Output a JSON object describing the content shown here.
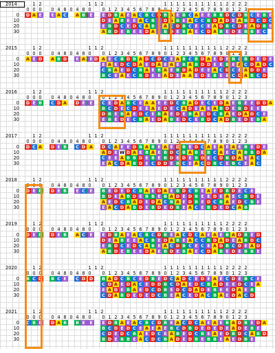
{
  "colors": {
    "A": {
      "bg": "#ffe000",
      "fg": "#8a1c00"
    },
    "B": {
      "bg": "#00b050",
      "fg": "#ffffff"
    },
    "C": {
      "bg": "#1f6fd6",
      "fg": "#ffffff"
    },
    "D": {
      "bg": "#e2231a",
      "fg": "#ffffff"
    },
    "E": {
      "bg": "#9b59d0",
      "fg": "#ffffff"
    },
    "highlight": "#f48c14"
  },
  "header_top": [
    "1",
    "2",
    "",
    "",
    "",
    "",
    "",
    "",
    "1",
    "1",
    "1",
    "2"
  ],
  "header_top_right": [
    "1",
    "1",
    "1",
    "1",
    "1",
    "1",
    "1",
    "1",
    "1",
    "1",
    "2",
    "2",
    "2",
    "2"
  ],
  "header_bottom_left": [
    "0",
    "0",
    "0",
    "",
    "0",
    "4",
    "8",
    "0",
    "4",
    "8",
    "0"
  ],
  "header_bottom_right": [
    "0",
    "1",
    "2",
    "3",
    "4",
    "5",
    "6",
    "7",
    "8",
    "9",
    "0",
    "1",
    "2",
    "3",
    "4",
    "5",
    "6",
    "7",
    "8",
    "9",
    "0",
    "1",
    "2",
    "3"
  ],
  "row_labels": [
    "0",
    "10",
    "20",
    "30"
  ],
  "years": [
    {
      "year": "2014",
      "left": [
        "DAE",
        "EAC",
        "ABD",
        "E"
      ],
      "rows": [
        "EDBAEACBCDBAEBCAEEBBDCDBCEBED",
        "DEABEEACBEDABEACCBDADEABDCDCE",
        "EBDCEDCABEACDBCECEADBCDEADBE",
        "ABDEBEEDAEBDEBAECDABEDEBBEC"
      ]
    },
    {
      "year": "2015",
      "left": [
        "AED",
        "ABD",
        "EACD",
        "E"
      ],
      "rows": [
        "AECBDBADCDCEABCBDAEDEBCBDEDE",
        "EAEDCDAEDAEAEBABDDEEBEACDADC",
        "CBAEDCBAEBAEBDADEEACDCEADDE",
        "BCEAECBDEEADEAAEDEBEECDABCD"
      ]
    },
    {
      "year": "2016",
      "left": [
        "DEB",
        "CDA",
        "DEB",
        "E"
      ],
      "rows": [
        "CEDABCEAAEEDCBADECEDAEBEEDDA",
        "BCDECDEEAEDECADEAEABDEBDEE",
        "DBEBAEDCEBAEDEBAEDCBAEDADCE",
        "EBEDECBAEDABEDCEBDCADBEDEBA"
      ]
    },
    {
      "year": "2017",
      "left": [
        "DCA",
        "DEB",
        "CDA",
        "A"
      ],
      "rows": [
        "DCAEEDBABEAEDBEDCAEAEAEBEDE",
        "ADEWDAEBAEBDCBABEBCAECABBDA",
        "CEEABBDEBEBDEDEBDECDBDAEAC",
        "EACDABDECDDEBCEACDBCEBCEAC"
      ]
    },
    {
      "year": "2018",
      "left": [
        "DEB",
        "DEB",
        "ECB",
        "E"
      ],
      "rows": [
        "BEDEDCBAEDAEBDCBEAEDBDECE",
        "BDEABDEBBEBADEDBEEDEAECBDE",
        "AEDCBADEDACBAEDBEDCBAEDCBE",
        "EACDABDEBDEDBEACEBDEDCAB"
      ]
    },
    {
      "year": "2019",
      "left": [
        "DEB",
        "DEB",
        "ACD",
        "E"
      ],
      "rows": [
        "EDBAEACBCDBEACDCAEAEBADBED",
        "DEABEEACBEDABEACCBDADEABDC",
        "EBDCEDCABEACDBCECEADBCDEAD",
        "ABDEBEEDAEBDEBAECDABEDEBBE"
      ]
    },
    {
      "year": "2020",
      "left": [
        "BCD",
        "BCE",
        "CDA",
        "D"
      ],
      "rows": [
        "BADCBCEDBEDCADCEDEAECDEBCE",
        "CDAEDACEDDBCDAEDCBADEEDCEA",
        "EADEBAEDCDBEDCDADEBEEDAEB",
        "CDABDEDEDCBEACEDACBAEDACD"
      ]
    },
    {
      "year": "2021",
      "left": [
        "CBE",
        "DAB",
        "BEE",
        "E"
      ],
      "rows": [
        "EDBAEACBCDBEACDCAEAEBADBEDA",
        "BCDEDCEAEAEBCDBDEDEDEADEBE",
        "CDEDCBAEDCEABEDCBEAEDBDCABD",
        "BDEBBEACDCBADEDBEBBEAEDBE"
      ]
    }
  ]
}
